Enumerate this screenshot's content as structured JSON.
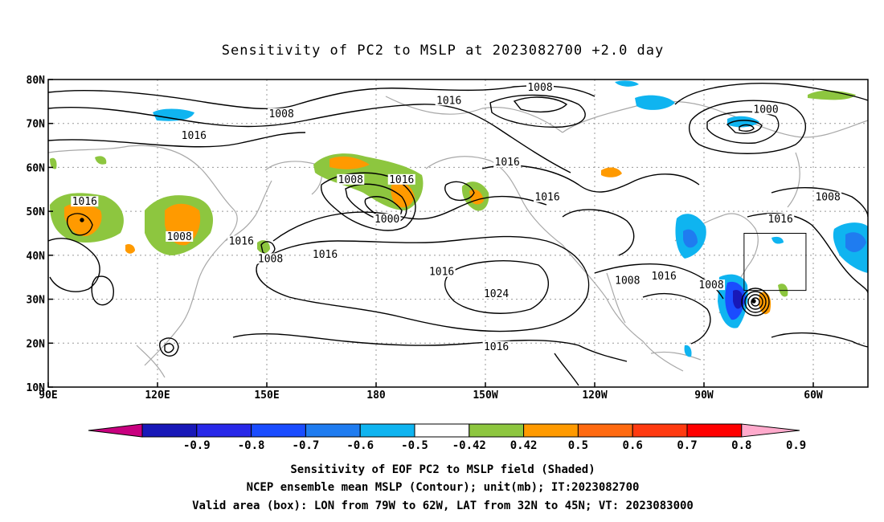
{
  "chart_data": {
    "type": "contour_map",
    "title": "Sensitivity of PC2 to MSLP at 2023082700 +2.0 day",
    "x_ticks": [
      "90E",
      "120E",
      "150E",
      "180",
      "150W",
      "120W",
      "90W",
      "60W"
    ],
    "x_tick_lon": [
      90,
      120,
      150,
      180,
      210,
      240,
      270,
      300
    ],
    "y_ticks": [
      "80N",
      "70N",
      "60N",
      "50N",
      "40N",
      "30N",
      "20N",
      "10N"
    ],
    "y_tick_lat": [
      80,
      70,
      60,
      50,
      40,
      30,
      20,
      10
    ],
    "xlim": [
      90,
      315
    ],
    "ylim": [
      10,
      80
    ],
    "grid": true,
    "contour_labels": [
      {
        "text": "1008",
        "lon": 225,
        "lat": 78
      },
      {
        "text": "1016",
        "lon": 200,
        "lat": 75
      },
      {
        "text": "1008",
        "lon": 154,
        "lat": 72
      },
      {
        "text": "1000",
        "lon": 287,
        "lat": 73
      },
      {
        "text": "1016",
        "lon": 130,
        "lat": 67
      },
      {
        "text": "1008",
        "lon": 173,
        "lat": 57
      },
      {
        "text": "1016",
        "lon": 187,
        "lat": 57
      },
      {
        "text": "1016",
        "lon": 216,
        "lat": 61
      },
      {
        "text": "1016",
        "lon": 227,
        "lat": 53
      },
      {
        "text": "1008",
        "lon": 304,
        "lat": 53
      },
      {
        "text": "1016",
        "lon": 100,
        "lat": 52
      },
      {
        "text": "1000",
        "lon": 183,
        "lat": 48
      },
      {
        "text": "1016",
        "lon": 291,
        "lat": 48
      },
      {
        "text": "1008",
        "lon": 126,
        "lat": 44
      },
      {
        "text": "1016",
        "lon": 143,
        "lat": 43
      },
      {
        "text": "1016",
        "lon": 166,
        "lat": 40
      },
      {
        "text": "1008",
        "lon": 151,
        "lat": 39
      },
      {
        "text": "1016",
        "lon": 198,
        "lat": 36
      },
      {
        "text": "1008",
        "lon": 249,
        "lat": 34
      },
      {
        "text": "1016",
        "lon": 259,
        "lat": 35
      },
      {
        "text": "1008",
        "lon": 272,
        "lat": 33
      },
      {
        "text": "1024",
        "lon": 213,
        "lat": 31
      },
      {
        "text": "1016",
        "lon": 213,
        "lat": 19
      }
    ],
    "valid_box": {
      "lon": [
        281,
        298
      ],
      "lat": [
        32,
        45
      ]
    },
    "colorbar": {
      "labels": [
        "-0.9",
        "-0.8",
        "-0.7",
        "-0.6",
        "-0.5",
        "-0.42",
        "0.42",
        "0.5",
        "0.6",
        "0.7",
        "0.8",
        "0.9"
      ],
      "colors": [
        "#1818b8",
        "#2828e8",
        "#1a4cff",
        "#1f7cf0",
        "#0fb4f0",
        "#ffffff",
        "#8dc63f",
        "#ff9a00",
        "#ff6a10",
        "#ff3a10",
        "#ff0000"
      ],
      "low_end_color": "#c8007f",
      "high_end_color": "#ffaacc"
    },
    "captions": [
      "Sensitivity of EOF PC2 to MSLP field (Shaded)",
      "NCEP ensemble mean MSLP (Contour); unit(mb); IT:2023082700",
      "Valid area (box): LON from 79W to 62W, LAT from 32N to 45N; VT: 2023083000"
    ]
  }
}
